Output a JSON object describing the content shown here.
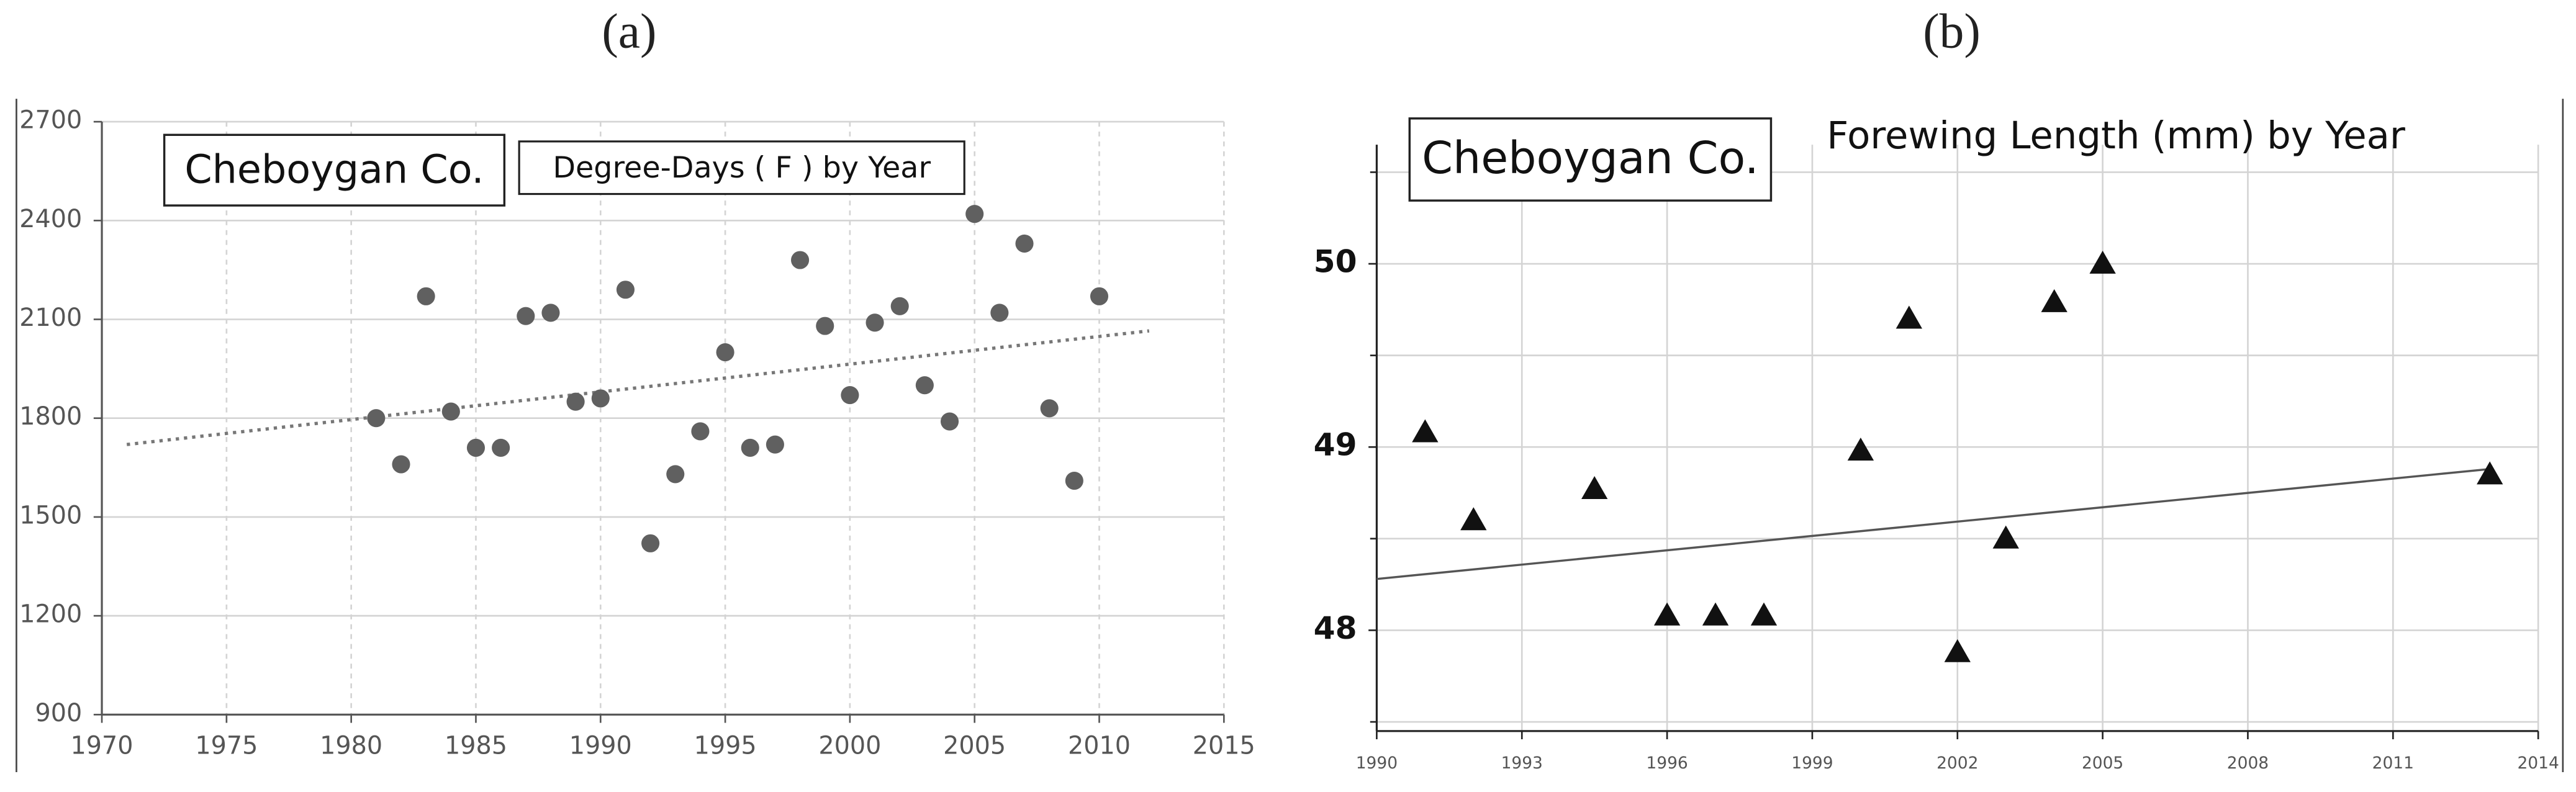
{
  "chart_data": [
    {
      "type": "scatter",
      "panel_label": "(a)",
      "annotation": "Cheboygan Co.",
      "title": "Degree-Days ( F ) by Year",
      "marker": "circle",
      "color": "#606060",
      "x": [
        1981,
        1982,
        1983,
        1984,
        1985,
        1986,
        1987,
        1988,
        1989,
        1990,
        1991,
        1992,
        1993,
        1994,
        1995,
        1996,
        1997,
        1998,
        1999,
        2000,
        2001,
        2002,
        2003,
        2004,
        2005,
        2006,
        2007,
        2008,
        2009,
        2010
      ],
      "values": [
        1800,
        1660,
        2170,
        1820,
        1710,
        1710,
        2110,
        2120,
        1850,
        1860,
        2190,
        1420,
        1630,
        1760,
        2000,
        1710,
        1720,
        2280,
        2080,
        1870,
        2090,
        2140,
        1900,
        1790,
        2420,
        2120,
        2330,
        1830,
        1610,
        2170
      ],
      "trendline": {
        "x": [
          1971,
          2012
        ],
        "y": [
          1720,
          2065
        ],
        "style": "dotted"
      },
      "xlim": [
        1970,
        2015
      ],
      "xticks": [
        1970,
        1975,
        1980,
        1985,
        1990,
        1995,
        2000,
        2005,
        2010,
        2015
      ],
      "ylim": [
        900,
        2700
      ],
      "yticks": [
        900,
        1200,
        1500,
        1800,
        2100,
        2400,
        2700
      ],
      "grid": true
    },
    {
      "type": "scatter",
      "panel_label": "(b)",
      "annotation": "Cheboygan Co.",
      "title": "Forewing Length (mm) by Year",
      "marker": "triangle",
      "color": "#111111",
      "x": [
        1991,
        1992,
        1994.5,
        1996,
        1997,
        1998,
        2000,
        2001,
        2002,
        2003,
        2004,
        2005,
        2013
      ],
      "values": [
        49.08,
        48.6,
        48.77,
        48.08,
        48.08,
        48.08,
        48.98,
        49.7,
        47.88,
        48.5,
        49.79,
        50.0,
        48.85
      ],
      "trendline": {
        "x": [
          1990,
          2013
        ],
        "y": [
          48.28,
          48.88
        ],
        "style": "solid"
      },
      "xlim": [
        1990,
        2014
      ],
      "xticks": [
        1990,
        1993,
        1996,
        1999,
        2002,
        2005,
        2008,
        2011,
        2014
      ],
      "ylim": [
        47.45,
        50.65
      ],
      "yticks": [
        48,
        49,
        50
      ],
      "minor_yticks": [
        47.5,
        48.5,
        49.5,
        50.5
      ],
      "grid": true
    }
  ]
}
